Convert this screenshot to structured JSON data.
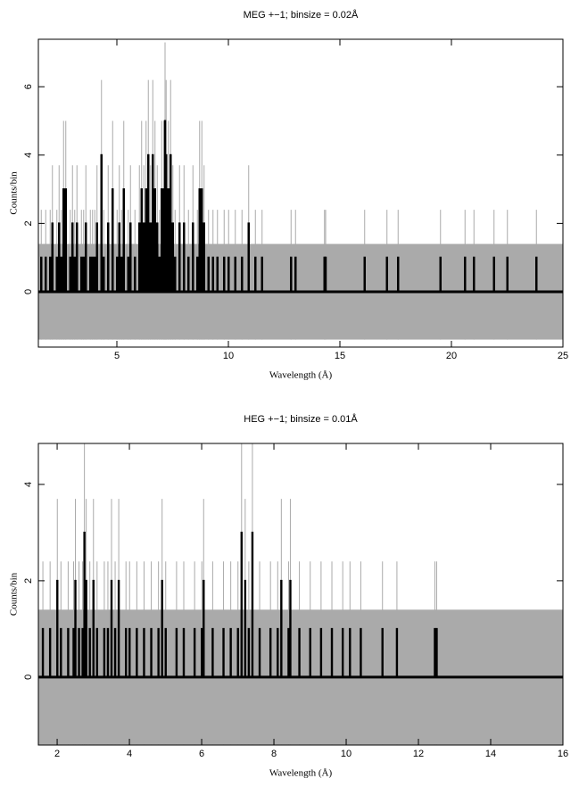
{
  "chart_data": [
    {
      "type": "bar",
      "title": "MEG +−1; binsize = 0.02Å",
      "x_label": "Wavelength (Å)",
      "y_label": "Counts/bin",
      "bin_width": 0.02,
      "color": "#000000",
      "error_color": "#aaaaaa",
      "error_band": [
        -1.4,
        1.4
      ],
      "x": [
        1.6,
        1.8,
        2.0,
        2.1,
        2.3,
        2.4,
        2.5,
        2.6,
        2.7,
        2.9,
        3.0,
        3.1,
        3.2,
        3.4,
        3.5,
        3.6,
        3.8,
        3.9,
        4.0,
        4.1,
        4.3,
        4.4,
        4.6,
        4.8,
        5.0,
        5.1,
        5.2,
        5.3,
        5.5,
        5.6,
        5.8,
        6.0,
        6.1,
        6.2,
        6.3,
        6.4,
        6.5,
        6.6,
        6.7,
        6.8,
        6.9,
        7.0,
        7.1,
        7.15,
        7.2,
        7.3,
        7.4,
        7.5,
        7.6,
        7.8,
        8.0,
        8.2,
        8.4,
        8.6,
        8.7,
        8.8,
        8.9,
        9.1,
        9.3,
        9.5,
        9.8,
        10.0,
        10.3,
        10.6,
        10.9,
        11.2,
        11.5,
        12.8,
        13.0,
        14.3,
        14.35,
        16.1,
        17.1,
        17.6,
        19.5,
        20.6,
        21.0,
        21.9,
        22.5,
        23.8
      ],
      "values": [
        1,
        1,
        1,
        2,
        1,
        2,
        1,
        3,
        3,
        1,
        2,
        1,
        2,
        1,
        1,
        2,
        1,
        1,
        1,
        2,
        4,
        1,
        2,
        3,
        1,
        2,
        1,
        3,
        1,
        2,
        1,
        2,
        3,
        2,
        3,
        4,
        2,
        4,
        3,
        2,
        1,
        3,
        3,
        5,
        4,
        3,
        4,
        2,
        1,
        2,
        2,
        1,
        2,
        1,
        3,
        3,
        2,
        1,
        1,
        1,
        1,
        1,
        1,
        1,
        2,
        1,
        1,
        1,
        1,
        1,
        1,
        1,
        1,
        1,
        1,
        1,
        1,
        1,
        1,
        1
      ],
      "errors": [
        1.4,
        1.4,
        1.4,
        1.7,
        1.4,
        1.7,
        1.4,
        2,
        2,
        1.4,
        1.7,
        1.4,
        1.7,
        1.4,
        1.4,
        1.7,
        1.4,
        1.4,
        1.4,
        1.7,
        2.2,
        1.4,
        1.7,
        2,
        1.4,
        1.7,
        1.4,
        2,
        1.4,
        1.7,
        1.4,
        1.7,
        2,
        1.7,
        2,
        2.2,
        1.7,
        2.2,
        2,
        1.7,
        1.4,
        2,
        2,
        2.3,
        2.2,
        2,
        2.2,
        1.7,
        1.4,
        1.7,
        1.7,
        1.4,
        1.7,
        1.4,
        2,
        2,
        1.7,
        1.4,
        1.4,
        1.4,
        1.4,
        1.4,
        1.4,
        1.4,
        1.7,
        1.4,
        1.4,
        1.4,
        1.4,
        1.4,
        1.4,
        1.4,
        1.4,
        1.4,
        1.4,
        1.4,
        1.4,
        1.4,
        1.4,
        1.4
      ],
      "xlim": [
        1.48,
        25
      ],
      "ylim": [
        -1.62,
        7.39
      ],
      "xticks": [
        5,
        10,
        15,
        20,
        25
      ],
      "yticks": [
        0,
        2,
        4,
        6
      ]
    },
    {
      "type": "bar",
      "title": "HEG +−1; binsize = 0.01Å",
      "x_label": "Wavelength (Å)",
      "y_label": "Counts/bin",
      "bin_width": 0.01,
      "color": "#000000",
      "error_color": "#aaaaaa",
      "error_band": [
        -1.4,
        1.4
      ],
      "x": [
        1.6,
        1.8,
        2.0,
        2.1,
        2.3,
        2.45,
        2.5,
        2.6,
        2.7,
        2.75,
        2.8,
        2.9,
        3.0,
        3.1,
        3.3,
        3.4,
        3.5,
        3.6,
        3.7,
        3.9,
        4.0,
        4.2,
        4.4,
        4.6,
        4.8,
        4.9,
        5.0,
        5.3,
        5.5,
        5.8,
        6.0,
        6.05,
        6.3,
        6.6,
        6.8,
        7.0,
        7.1,
        7.2,
        7.3,
        7.4,
        7.6,
        7.9,
        8.1,
        8.2,
        8.4,
        8.45,
        8.7,
        9.0,
        9.3,
        9.6,
        9.9,
        10.1,
        10.4,
        11.0,
        11.4,
        12.45,
        12.5
      ],
      "values": [
        1,
        1,
        2,
        1,
        1,
        1,
        2,
        1,
        1,
        3,
        2,
        1,
        2,
        1,
        1,
        1,
        2,
        1,
        2,
        1,
        1,
        1,
        1,
        1,
        1,
        2,
        1,
        1,
        1,
        1,
        1,
        2,
        1,
        1,
        1,
        1,
        3,
        2,
        1,
        3,
        1,
        1,
        1,
        2,
        1,
        2,
        1,
        1,
        1,
        1,
        1,
        1,
        1,
        1,
        1,
        1,
        1
      ],
      "errors": [
        1.4,
        1.4,
        1.7,
        1.4,
        1.4,
        1.4,
        1.7,
        1.4,
        1.4,
        2,
        1.7,
        1.4,
        1.7,
        1.4,
        1.4,
        1.4,
        1.7,
        1.4,
        1.7,
        1.4,
        1.4,
        1.4,
        1.4,
        1.4,
        1.4,
        1.7,
        1.4,
        1.4,
        1.4,
        1.4,
        1.4,
        1.7,
        1.4,
        1.4,
        1.4,
        1.4,
        2,
        1.7,
        1.4,
        2,
        1.4,
        1.4,
        1.4,
        1.7,
        1.4,
        1.7,
        1.4,
        1.4,
        1.4,
        1.4,
        1.4,
        1.4,
        1.4,
        1.4,
        1.4,
        1.4,
        1.4
      ],
      "xlim": [
        1.48,
        16
      ],
      "ylim": [
        -1.41,
        4.85
      ],
      "xticks": [
        2,
        4,
        6,
        8,
        10,
        12,
        14,
        16
      ],
      "yticks": [
        0,
        2,
        4
      ]
    }
  ]
}
